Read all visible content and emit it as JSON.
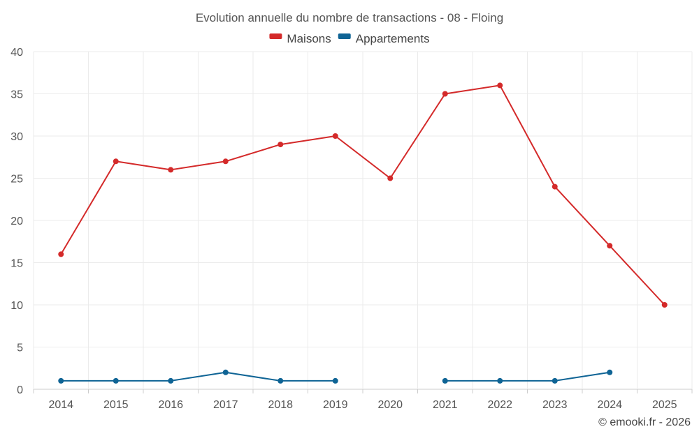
{
  "chart_data": {
    "type": "line",
    "title": "Evolution annuelle du nombre de transactions - 08 - Floing",
    "categories": [
      "2014",
      "2015",
      "2016",
      "2017",
      "2018",
      "2019",
      "2020",
      "2021",
      "2022",
      "2023",
      "2024",
      "2025"
    ],
    "ylim": [
      0,
      40
    ],
    "yticks": [
      0,
      5,
      10,
      15,
      20,
      25,
      30,
      35,
      40
    ],
    "grid": true,
    "legend_position": "top-center",
    "series": [
      {
        "name": "Maisons",
        "color": "#d42a2a",
        "values": [
          16,
          27,
          26,
          27,
          29,
          30,
          25,
          35,
          36,
          24,
          17,
          10
        ]
      },
      {
        "name": "Appartements",
        "color": "#0f6495",
        "values": [
          1,
          1,
          1,
          2,
          1,
          1,
          null,
          1,
          1,
          1,
          2,
          null
        ]
      }
    ]
  },
  "credit": "© emooki.fr - 2026"
}
